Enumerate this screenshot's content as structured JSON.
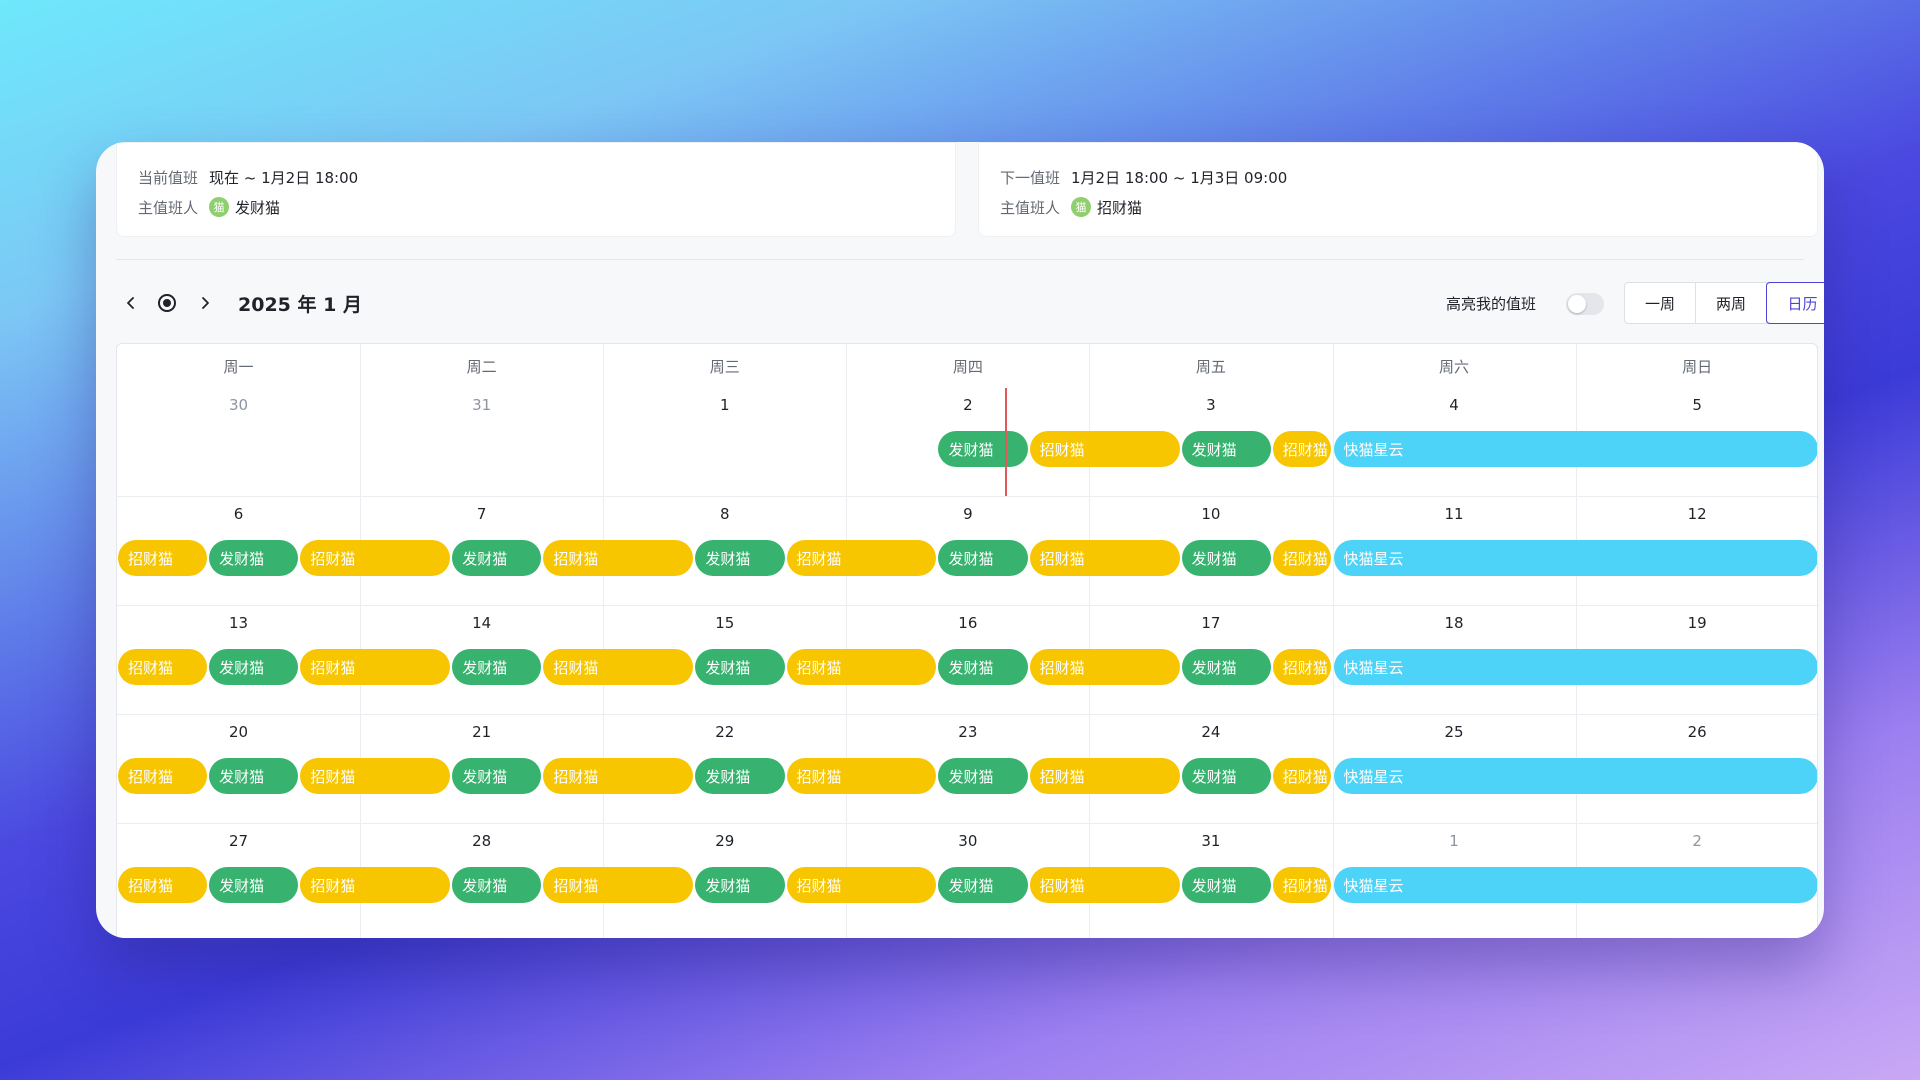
{
  "current_shift": {
    "label": "当前值班",
    "time": "现在 ~ 1月2日 18:00",
    "host_label": "主值班人",
    "avatar": "猫",
    "host": "发财猫"
  },
  "next_shift": {
    "label": "下一值班",
    "time": "1月2日 18:00 ~ 1月3日 09:00",
    "host_label": "主值班人",
    "avatar": "猫",
    "host": "招财猫"
  },
  "toolbar": {
    "prev_icon": "chevron-left-icon",
    "today_icon": "today-dot-icon",
    "next_icon": "chevron-right-icon",
    "month_title": "2025 年 1 月",
    "highlight_label": "高亮我的值班",
    "highlight_on": false,
    "views": [
      "一周",
      "两周",
      "日历"
    ],
    "active_view": "日历"
  },
  "calendar": {
    "weekdays": [
      "周一",
      "周二",
      "周三",
      "周四",
      "周五",
      "周六",
      "周日"
    ],
    "weeks": [
      [
        {
          "d": "30",
          "other": true
        },
        {
          "d": "31",
          "other": true
        },
        {
          "d": "1"
        },
        {
          "d": "2"
        },
        {
          "d": "3"
        },
        {
          "d": "4"
        },
        {
          "d": "5"
        }
      ],
      [
        {
          "d": "6"
        },
        {
          "d": "7"
        },
        {
          "d": "8"
        },
        {
          "d": "9"
        },
        {
          "d": "10"
        },
        {
          "d": "11"
        },
        {
          "d": "12"
        }
      ],
      [
        {
          "d": "13"
        },
        {
          "d": "14"
        },
        {
          "d": "15"
        },
        {
          "d": "16"
        },
        {
          "d": "17"
        },
        {
          "d": "18"
        },
        {
          "d": "19"
        }
      ],
      [
        {
          "d": "20"
        },
        {
          "d": "21"
        },
        {
          "d": "22"
        },
        {
          "d": "23"
        },
        {
          "d": "24"
        },
        {
          "d": "25"
        },
        {
          "d": "26"
        }
      ],
      [
        {
          "d": "27"
        },
        {
          "d": "28"
        },
        {
          "d": "29"
        },
        {
          "d": "30"
        },
        {
          "d": "31"
        },
        {
          "d": "1",
          "other": true
        },
        {
          "d": "2",
          "other": true
        }
      ]
    ],
    "people": {
      "green": "发财猫",
      "yellow": "招财猫",
      "blue": "快猫星云"
    },
    "colors": {
      "green": "#37b36f",
      "yellow": "#f7c600",
      "blue": "#4dd3f7",
      "now_line": "#e05a5a"
    }
  }
}
